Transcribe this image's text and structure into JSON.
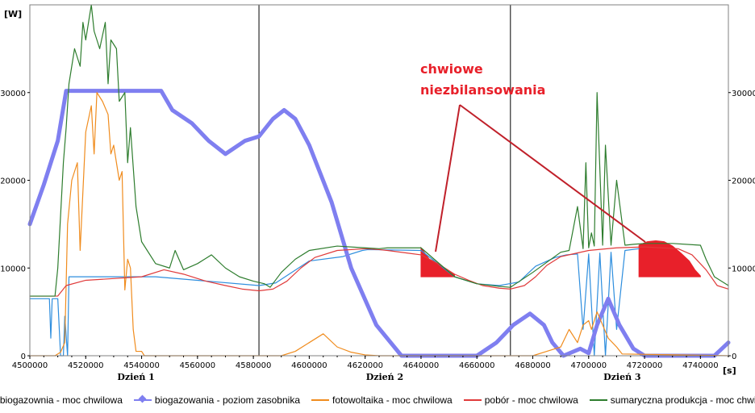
{
  "chart_data": {
    "type": "line",
    "ylabel": "[W]",
    "xlabel": "[s]",
    "xlim": [
      4500000,
      4750000
    ],
    "ylim": [
      0,
      40000
    ],
    "x_ticks": [
      4500000,
      4520000,
      4540000,
      4560000,
      4580000,
      4600000,
      4620000,
      4640000,
      4660000,
      4680000,
      4700000,
      4720000,
      4740000
    ],
    "y_ticks": [
      0,
      10000,
      20000,
      30000
    ],
    "y_ticks_right": [
      0,
      10000,
      20000,
      30000
    ],
    "day_separators": [
      4582000,
      4672000
    ],
    "day_labels": [
      {
        "label": "Dzień 1",
        "x": 4538000
      },
      {
        "label": "Dzień 2",
        "x": 4627000
      },
      {
        "label": "Dzień 3",
        "x": 4712000
      }
    ],
    "annotation": {
      "text_lines": [
        "chwiowe",
        "niezbilansowania"
      ],
      "arrow_tip": [
        4569000,
        12000
      ],
      "targets": [
        [
          4608000,
          11800
        ],
        [
          4718000,
          12500
        ]
      ]
    },
    "imbalance_regions": [
      {
        "x": [
          4640000,
          4652000
        ],
        "top": [
          [
            4640000,
            12300
          ],
          [
            4643000,
            11000
          ],
          [
            4645000,
            10700
          ],
          [
            4648000,
            10000
          ],
          [
            4650000,
            9600
          ],
          [
            4652000,
            9200
          ]
        ],
        "base": 9000
      },
      {
        "x": [
          4718000,
          4740000
        ],
        "top": [
          [
            4718000,
            12600
          ],
          [
            4721000,
            13000
          ],
          [
            4724000,
            13100
          ],
          [
            4727000,
            13000
          ],
          [
            4730000,
            12500
          ],
          [
            4733000,
            11700
          ],
          [
            4736000,
            10800
          ],
          [
            4738000,
            9800
          ],
          [
            4740000,
            9100
          ]
        ],
        "base": 9000
      }
    ],
    "series": [
      {
        "name": "biogazownia - moc chwilowa",
        "color": "#2e8ede",
        "marker": "none",
        "x": [
          4500000,
          4507000,
          4507500,
          4508000,
          4510000,
          4511000,
          4512000,
          4512500,
          4513500,
          4514000,
          4540000,
          4545000,
          4582000,
          4588000,
          4600000,
          4612000,
          4619000,
          4621000,
          4640000,
          4652000,
          4660000,
          4668000,
          4675000,
          4681000,
          4688000,
          4692000,
          4696000,
          4698000,
          4700000,
          4702000,
          4704000,
          4706000,
          4708000,
          4710000,
          4713000,
          4718000
        ],
        "y": [
          6500,
          6500,
          2000,
          6500,
          6500,
          0,
          0,
          4500,
          0,
          9000,
          9000,
          9000,
          8000,
          8300,
          10800,
          11300,
          12000,
          12100,
          12000,
          9000,
          8200,
          8000,
          8400,
          10200,
          11200,
          11500,
          11600,
          3000,
          11600,
          0,
          11700,
          0,
          11800,
          3000,
          12000,
          12200
        ]
      },
      {
        "name": "biogazowania - poziom zasobnika",
        "color": "#7f7ff0",
        "marker": "diamond",
        "x": [
          4500000,
          4505000,
          4510000,
          4513000,
          4520000,
          4535000,
          4547000,
          4551000,
          4558000,
          4564000,
          4570000,
          4577000,
          4582000,
          4587000,
          4591000,
          4595000,
          4600000,
          4608000,
          4615000,
          4624000,
          4633000,
          4640000,
          4660000,
          4667000,
          4673000,
          4679000,
          4684000,
          4687000,
          4691000,
          4697000,
          4700000,
          4703000,
          4707000,
          4711000,
          4716000,
          4720000,
          4730000,
          4745000,
          4750000
        ],
        "y": [
          15000,
          19500,
          24500,
          30200,
          30200,
          30200,
          30200,
          28000,
          26500,
          24500,
          23000,
          24500,
          25000,
          27000,
          28000,
          27000,
          24000,
          17500,
          10000,
          3500,
          0,
          0,
          0,
          1500,
          3500,
          4800,
          3500,
          1500,
          0,
          800,
          300,
          3500,
          6500,
          3500,
          800,
          0,
          0,
          0,
          1500
        ]
      },
      {
        "name": "fotowoltaika - moc chwilowa",
        "color": "#f08c1e",
        "marker": "none",
        "x": [
          4500000,
          4509000,
          4511000,
          4512500,
          4513500,
          4515000,
          4517000,
          4518000,
          4520000,
          4522000,
          4523000,
          4524000,
          4526000,
          4528000,
          4529000,
          4530000,
          4532000,
          4533000,
          4534000,
          4535000,
          4536000,
          4537000,
          4538000,
          4540000,
          4541000,
          4590000,
          4595000,
          4600000,
          4605000,
          4610000,
          4615000,
          4620000,
          4625000,
          4680000,
          4685000,
          4690000,
          4693000,
          4696000,
          4698000,
          4700000,
          4701000,
          4703000,
          4705000,
          4707000,
          4710000,
          4712000,
          4750000
        ],
        "y": [
          0,
          0,
          400,
          1500,
          15000,
          20000,
          22000,
          12000,
          25500,
          28500,
          23000,
          30000,
          29000,
          27500,
          23000,
          24000,
          20000,
          21000,
          7500,
          11000,
          10000,
          3000,
          500,
          500,
          0,
          0,
          500,
          1500,
          2500,
          1000,
          400,
          100,
          0,
          0,
          500,
          1000,
          3000,
          1500,
          3500,
          4000,
          3000,
          5000,
          3500,
          2000,
          1000,
          200,
          0
        ]
      },
      {
        "name": "pobór - moc chwilowa",
        "color": "#e03a3a",
        "marker": "none",
        "x": [
          4500000,
          4510000,
          4513000,
          4520000,
          4530000,
          4540000,
          4548000,
          4555000,
          4563000,
          4570000,
          4576000,
          4582000,
          4587000,
          4592000,
          4597000,
          4602000,
          4610000,
          4620000,
          4625000,
          4628000,
          4640000,
          4646000,
          4652000,
          4657000,
          4662000,
          4668000,
          4672000,
          4677000,
          4681000,
          4685000,
          4690000,
          4700000,
          4710000,
          4720000,
          4732000,
          4737000,
          4742000,
          4746000,
          4750000
        ],
        "y": [
          6800,
          6800,
          8000,
          8600,
          8800,
          9000,
          9800,
          9300,
          8500,
          8000,
          7600,
          7400,
          7600,
          8500,
          10000,
          11200,
          12000,
          12200,
          12100,
          12000,
          11500,
          10500,
          9300,
          8600,
          8000,
          7700,
          7600,
          8000,
          9000,
          10300,
          11300,
          12000,
          12300,
          12400,
          12200,
          11500,
          9800,
          8000,
          7600
        ]
      },
      {
        "name": "sumaryczna produkcja - moc chwilowa",
        "color": "#2e7d2e",
        "marker": "none",
        "x": [
          4500000,
          4509000,
          4510000,
          4511000,
          4512000,
          4513000,
          4514000,
          4516000,
          4518000,
          4519000,
          4520000,
          4522000,
          4523000,
          4525000,
          4527000,
          4528000,
          4529000,
          4531000,
          4532000,
          4534000,
          4535000,
          4536000,
          4538000,
          4540000,
          4545000,
          4550000,
          4552000,
          4555000,
          4560000,
          4565000,
          4570000,
          4575000,
          4580000,
          4584000,
          4586000,
          4590000,
          4595000,
          4600000,
          4610000,
          4620000,
          4625000,
          4628000,
          4640000,
          4652000,
          4660000,
          4668000,
          4672000,
          4680000,
          4690000,
          4693000,
          4696000,
          4698000,
          4699000,
          4700000,
          4701000,
          4702000,
          4703000,
          4705000,
          4706000,
          4708000,
          4710000,
          4713000,
          4716000,
          4720000,
          4730000,
          4740000,
          4742000,
          4745000,
          4750000
        ],
        "y": [
          6800,
          6800,
          10000,
          16000,
          22000,
          26000,
          31000,
          35000,
          33000,
          38000,
          36000,
          40000,
          37000,
          35000,
          38000,
          31000,
          36000,
          35000,
          29000,
          30000,
          22000,
          26000,
          17000,
          13000,
          10500,
          10000,
          12000,
          9800,
          10500,
          11500,
          10000,
          9000,
          8500,
          8200,
          7800,
          9500,
          11000,
          12000,
          12500,
          12300,
          12200,
          12300,
          12300,
          9000,
          8200,
          7900,
          7800,
          9500,
          11800,
          12000,
          17000,
          12200,
          22000,
          12300,
          14000,
          12500,
          30000,
          12600,
          24000,
          12600,
          20000,
          12600,
          12700,
          12800,
          12800,
          12600,
          11000,
          9000,
          8000
        ]
      }
    ]
  }
}
